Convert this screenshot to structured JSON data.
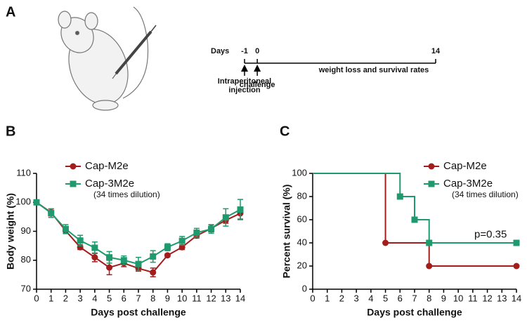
{
  "panel_labels": [
    "A",
    "B",
    "C"
  ],
  "timeline": {
    "label": "Days",
    "ticks": [
      -1,
      0,
      14
    ],
    "xlim": [
      -1,
      14
    ],
    "events": [
      "Intraperitoneal\ninjection",
      "challenge"
    ],
    "note": "weight loss and survival rates"
  },
  "chart_data": [
    {
      "type": "line",
      "xlabel": "Days post challenge",
      "ylabel": "Body weight (%)",
      "x": [
        0,
        1,
        2,
        3,
        4,
        5,
        6,
        7,
        8,
        9,
        10,
        11,
        12,
        13,
        14
      ],
      "xlim": [
        0,
        14
      ],
      "xticks": [
        0,
        1,
        2,
        3,
        4,
        5,
        6,
        7,
        8,
        9,
        10,
        11,
        12,
        13,
        14
      ],
      "ylim": [
        70,
        110
      ],
      "yticks": [
        70,
        80,
        90,
        100,
        110
      ],
      "series": [
        {
          "name": "Cap-M2e",
          "color": "#a31d1d",
          "marker": "circle",
          "values": [
            100,
            96.5,
            90.2,
            84.5,
            81,
            77.5,
            79,
            77.2,
            75.8,
            81.7,
            84.5,
            88.5,
            91,
            93.8,
            96.2
          ],
          "errors": [
            0,
            1.2,
            1,
            0.8,
            1.5,
            2.5,
            1.2,
            1,
            1.5,
            0.5,
            0.8,
            0.8,
            1.2,
            1,
            2
          ]
        },
        {
          "name": "Cap-3M2e",
          "legend_note": "(34 times dilution)",
          "color": "#1f9a6e",
          "marker": "square",
          "values": [
            100,
            96.3,
            90.8,
            86.8,
            84.3,
            81,
            80,
            78.7,
            81.3,
            84.5,
            86.7,
            89.5,
            90.8,
            94.8,
            97.5
          ],
          "errors": [
            0,
            1.5,
            1.5,
            1.8,
            2,
            2,
            1.5,
            2.3,
            2,
            1.2,
            1.5,
            1.5,
            1.5,
            3,
            3.5
          ]
        }
      ]
    },
    {
      "type": "step",
      "xlabel": "Days post challenge",
      "ylabel": "Percent survival (%)",
      "xlim": [
        0,
        14
      ],
      "xticks": [
        0,
        1,
        2,
        3,
        4,
        5,
        6,
        7,
        8,
        9,
        10,
        11,
        12,
        13,
        14
      ],
      "ylim": [
        0,
        100
      ],
      "yticks": [
        0,
        20,
        40,
        60,
        80,
        100
      ],
      "annotation": "p=0.35",
      "series": [
        {
          "name": "Cap-M2e",
          "color": "#a31d1d",
          "marker": "circle",
          "x": [
            0,
            5,
            8,
            14
          ],
          "values": [
            100,
            40,
            20,
            20
          ]
        },
        {
          "name": "Cap-3M2e",
          "legend_note": "(34 times dilution)",
          "color": "#1f9a6e",
          "marker": "square",
          "x": [
            0,
            6,
            7,
            8,
            14
          ],
          "values": [
            100,
            80,
            60,
            40,
            40
          ]
        }
      ]
    }
  ]
}
